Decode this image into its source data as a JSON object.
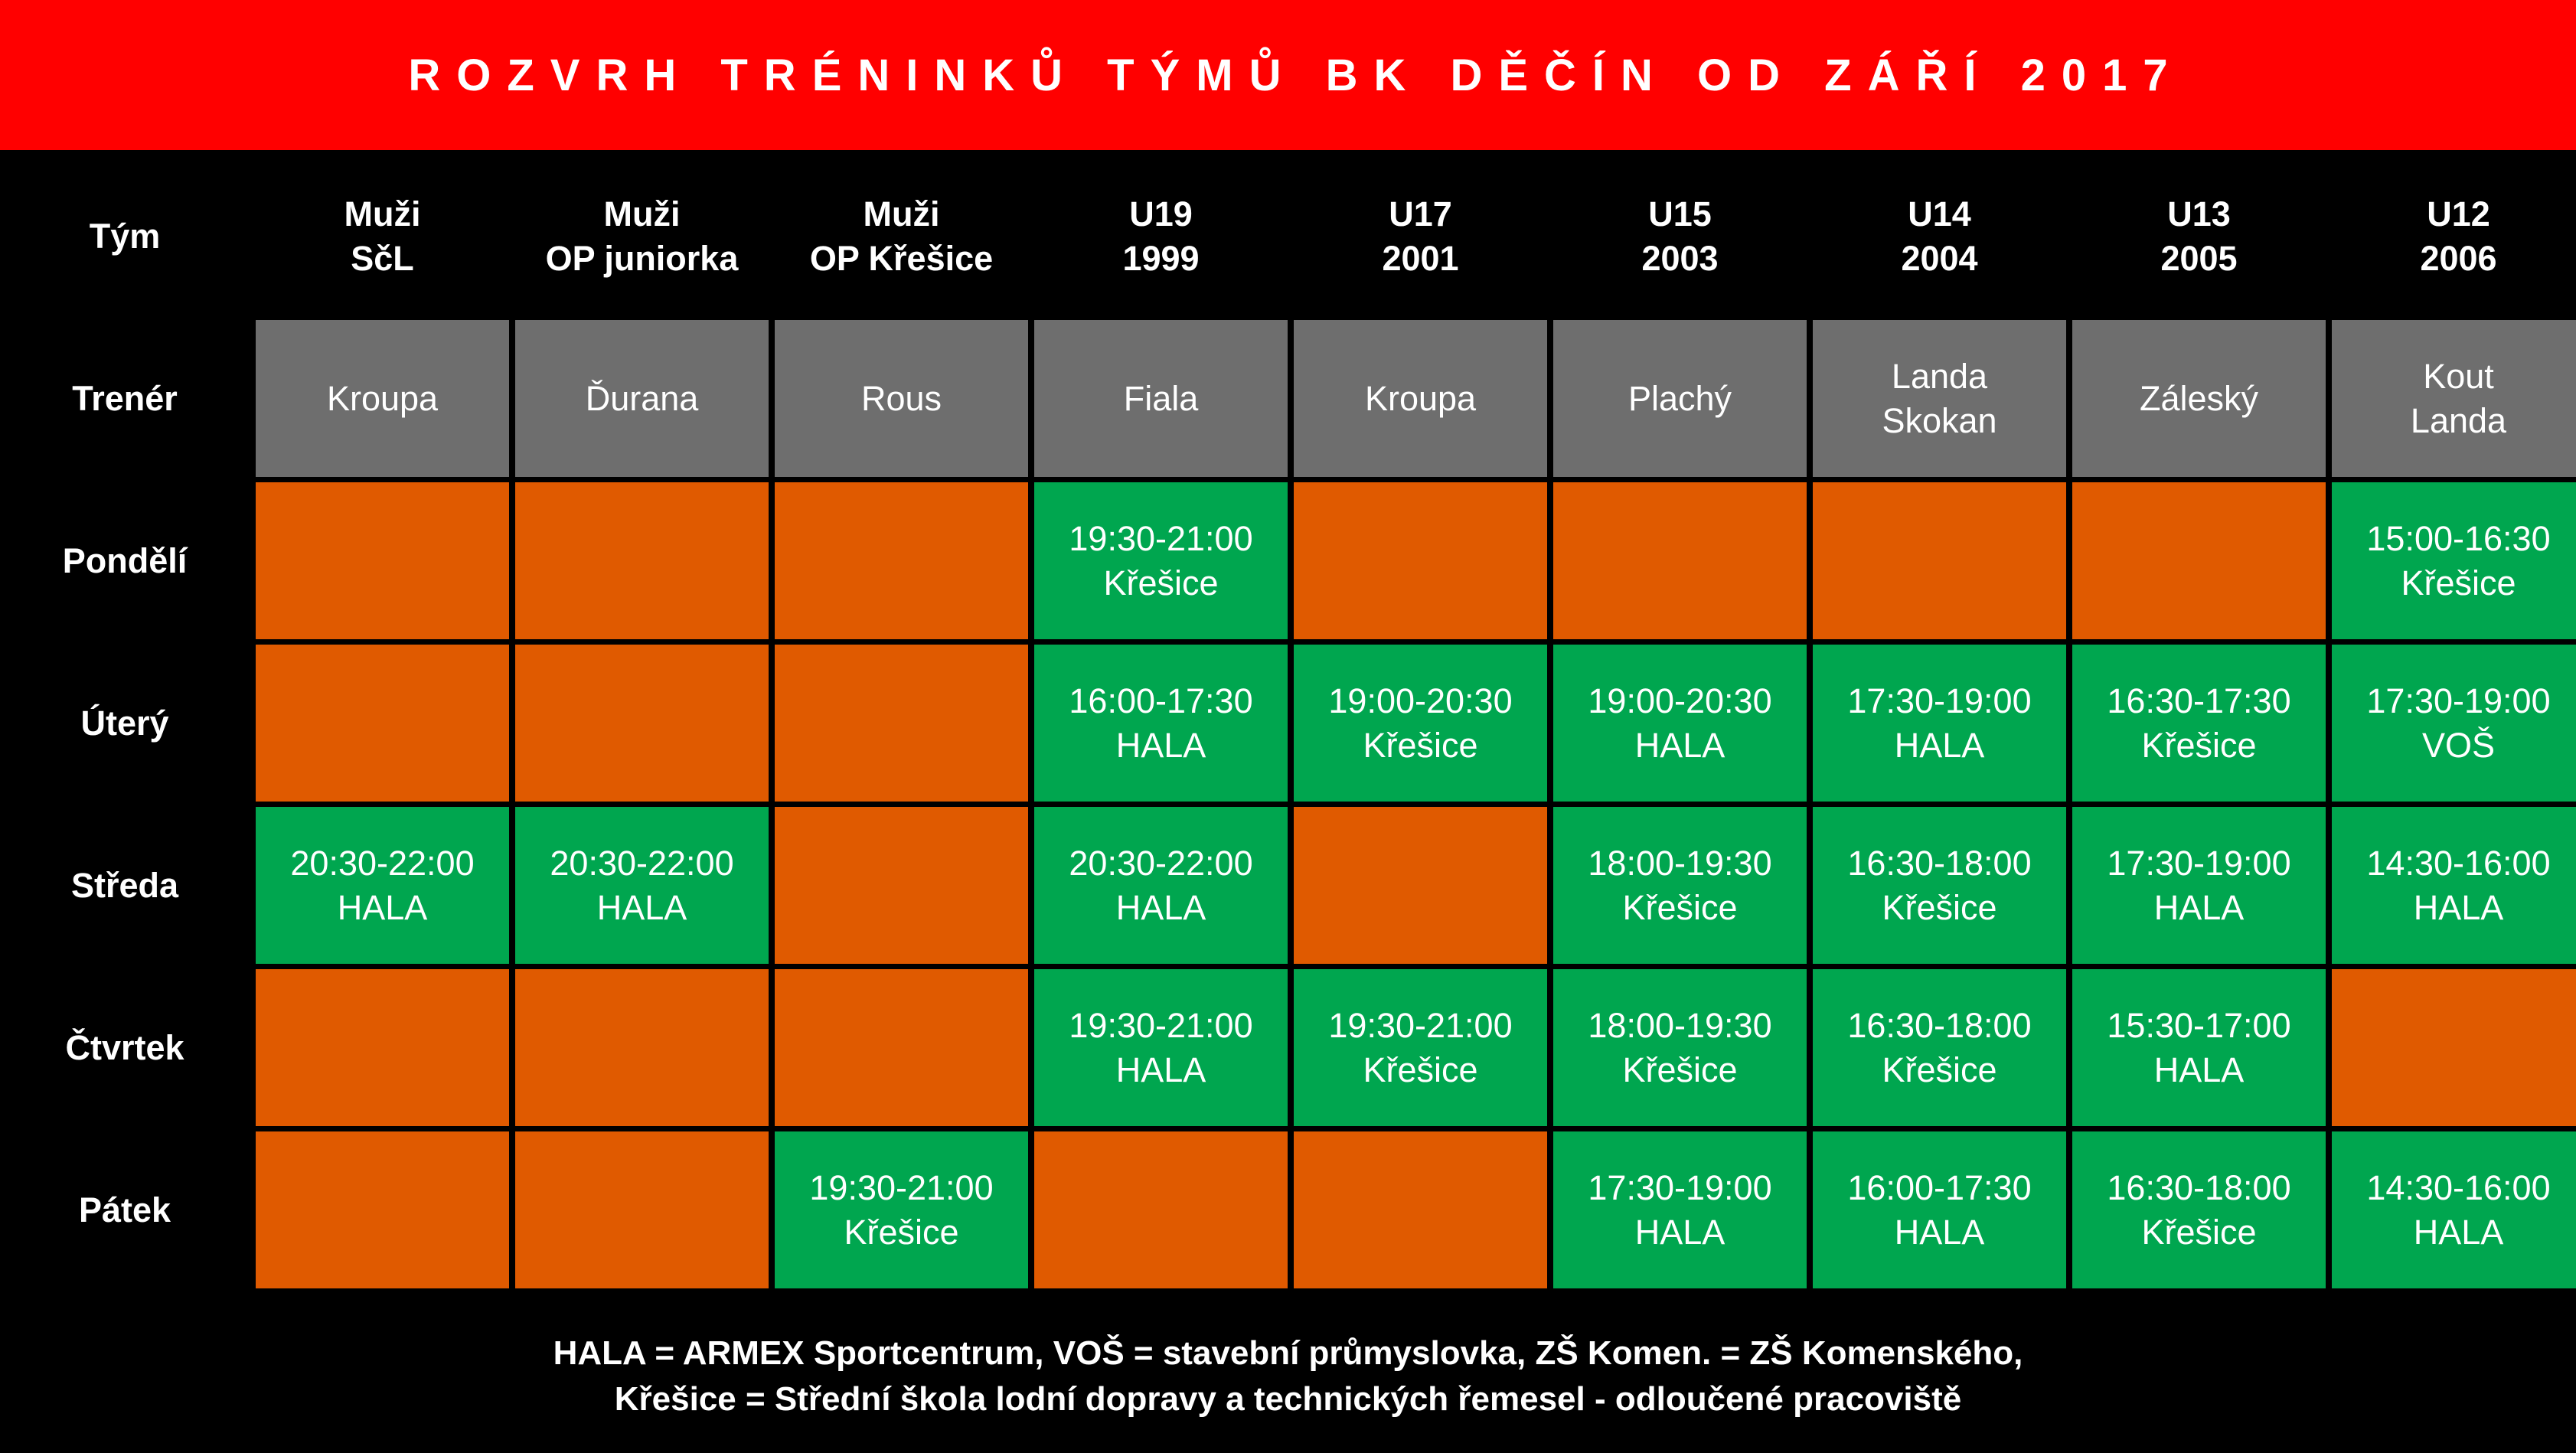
{
  "title": "ROZVRH TRÉNINKŮ TÝMŮ BK DĚČÍN OD ZÁŘÍ 2017",
  "row_labels": {
    "team": "Tým",
    "coach": "Trenér",
    "days": [
      "Pondělí",
      "Úterý",
      "Středa",
      "Čtvrtek",
      "Pátek"
    ]
  },
  "teams": [
    {
      "name": "Muži",
      "sub": "SčL",
      "coach": [
        "Kroupa"
      ],
      "sessions": [
        null,
        null,
        [
          "20:30-22:00",
          "HALA"
        ],
        null,
        null
      ]
    },
    {
      "name": "Muži",
      "sub": "OP juniorka",
      "coach": [
        "Ďurana"
      ],
      "sessions": [
        null,
        null,
        [
          "20:30-22:00",
          "HALA"
        ],
        null,
        null
      ]
    },
    {
      "name": "Muži",
      "sub": "OP Křešice",
      "coach": [
        "Rous"
      ],
      "sessions": [
        null,
        null,
        null,
        null,
        [
          "19:30-21:00",
          "Křešice"
        ]
      ]
    },
    {
      "name": "U19",
      "sub": "1999",
      "coach": [
        "Fiala"
      ],
      "sessions": [
        [
          "19:30-21:00",
          "Křešice"
        ],
        [
          "16:00-17:30",
          "HALA"
        ],
        [
          "20:30-22:00",
          "HALA"
        ],
        [
          "19:30-21:00",
          "HALA"
        ],
        null
      ]
    },
    {
      "name": "U17",
      "sub": "2001",
      "coach": [
        "Kroupa"
      ],
      "sessions": [
        null,
        [
          "19:00-20:30",
          "Křešice"
        ],
        null,
        [
          "19:30-21:00",
          "Křešice"
        ],
        null
      ]
    },
    {
      "name": "U15",
      "sub": "2003",
      "coach": [
        "Plachý"
      ],
      "sessions": [
        null,
        [
          "19:00-20:30",
          "HALA"
        ],
        [
          "18:00-19:30",
          "Křešice"
        ],
        [
          "18:00-19:30",
          "Křešice"
        ],
        [
          "17:30-19:00",
          "HALA"
        ]
      ]
    },
    {
      "name": "U14",
      "sub": "2004",
      "coach": [
        "Landa",
        "Skokan"
      ],
      "sessions": [
        null,
        [
          "17:30-19:00",
          "HALA"
        ],
        [
          "16:30-18:00",
          "Křešice"
        ],
        [
          "16:30-18:00",
          "Křešice"
        ],
        [
          "16:00-17:30",
          "HALA"
        ]
      ]
    },
    {
      "name": "U13",
      "sub": "2005",
      "coach": [
        "Záleský"
      ],
      "sessions": [
        null,
        [
          "16:30-17:30",
          "Křešice"
        ],
        [
          "17:30-19:00",
          "HALA"
        ],
        [
          "15:30-17:00",
          "HALA"
        ],
        [
          "16:30-18:00",
          "Křešice"
        ]
      ]
    },
    {
      "name": "U12",
      "sub": "2006",
      "coach": [
        "Kout",
        "Landa"
      ],
      "sessions": [
        [
          "15:00-16:30",
          "Křešice"
        ],
        [
          "17:30-19:00",
          "VOŠ"
        ],
        [
          "14:30-16:00",
          "HALA"
        ],
        null,
        [
          "14:30-16:00",
          "HALA"
        ]
      ]
    }
  ],
  "footer": {
    "line1": "HALA = ARMEX Sportcentrum, VOŠ = stavební průmyslovka, ZŠ Komen. = ZŠ Komenského,",
    "line2": "Křešice = Střední škola lodní dopravy a technických řemesel - odloučené pracoviště"
  },
  "colors": {
    "title_bg": "#ff0000",
    "header_bg": "#000000",
    "coach_bg": "#6e6e6e",
    "session_bg": "#00a64f",
    "empty_bg": "#e05a00"
  }
}
